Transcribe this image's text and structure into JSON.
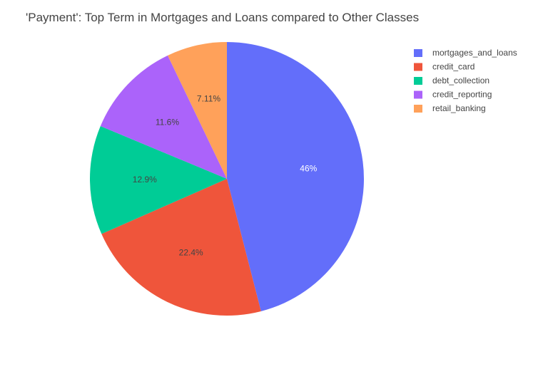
{
  "chart_data": {
    "type": "pie",
    "title": "'Payment': Top Term in Mortgages and Loans compared to Other Classes",
    "slices": [
      {
        "name": "mortgages_and_loans",
        "value": 46.0,
        "label": "46%",
        "color": "#636efa",
        "label_color": "#ffffff"
      },
      {
        "name": "credit_card",
        "value": 22.4,
        "label": "22.4%",
        "color": "#ef553b",
        "label_color": "#444444"
      },
      {
        "name": "debt_collection",
        "value": 12.9,
        "label": "12.9%",
        "color": "#00cc96",
        "label_color": "#444444"
      },
      {
        "name": "credit_reporting",
        "value": 11.6,
        "label": "11.6%",
        "color": "#ab63fa",
        "label_color": "#444444"
      },
      {
        "name": "retail_banking",
        "value": 7.11,
        "label": "7.11%",
        "color": "#ffa15a",
        "label_color": "#444444"
      }
    ],
    "direction": "clockwise",
    "legend_position": "top-right"
  }
}
